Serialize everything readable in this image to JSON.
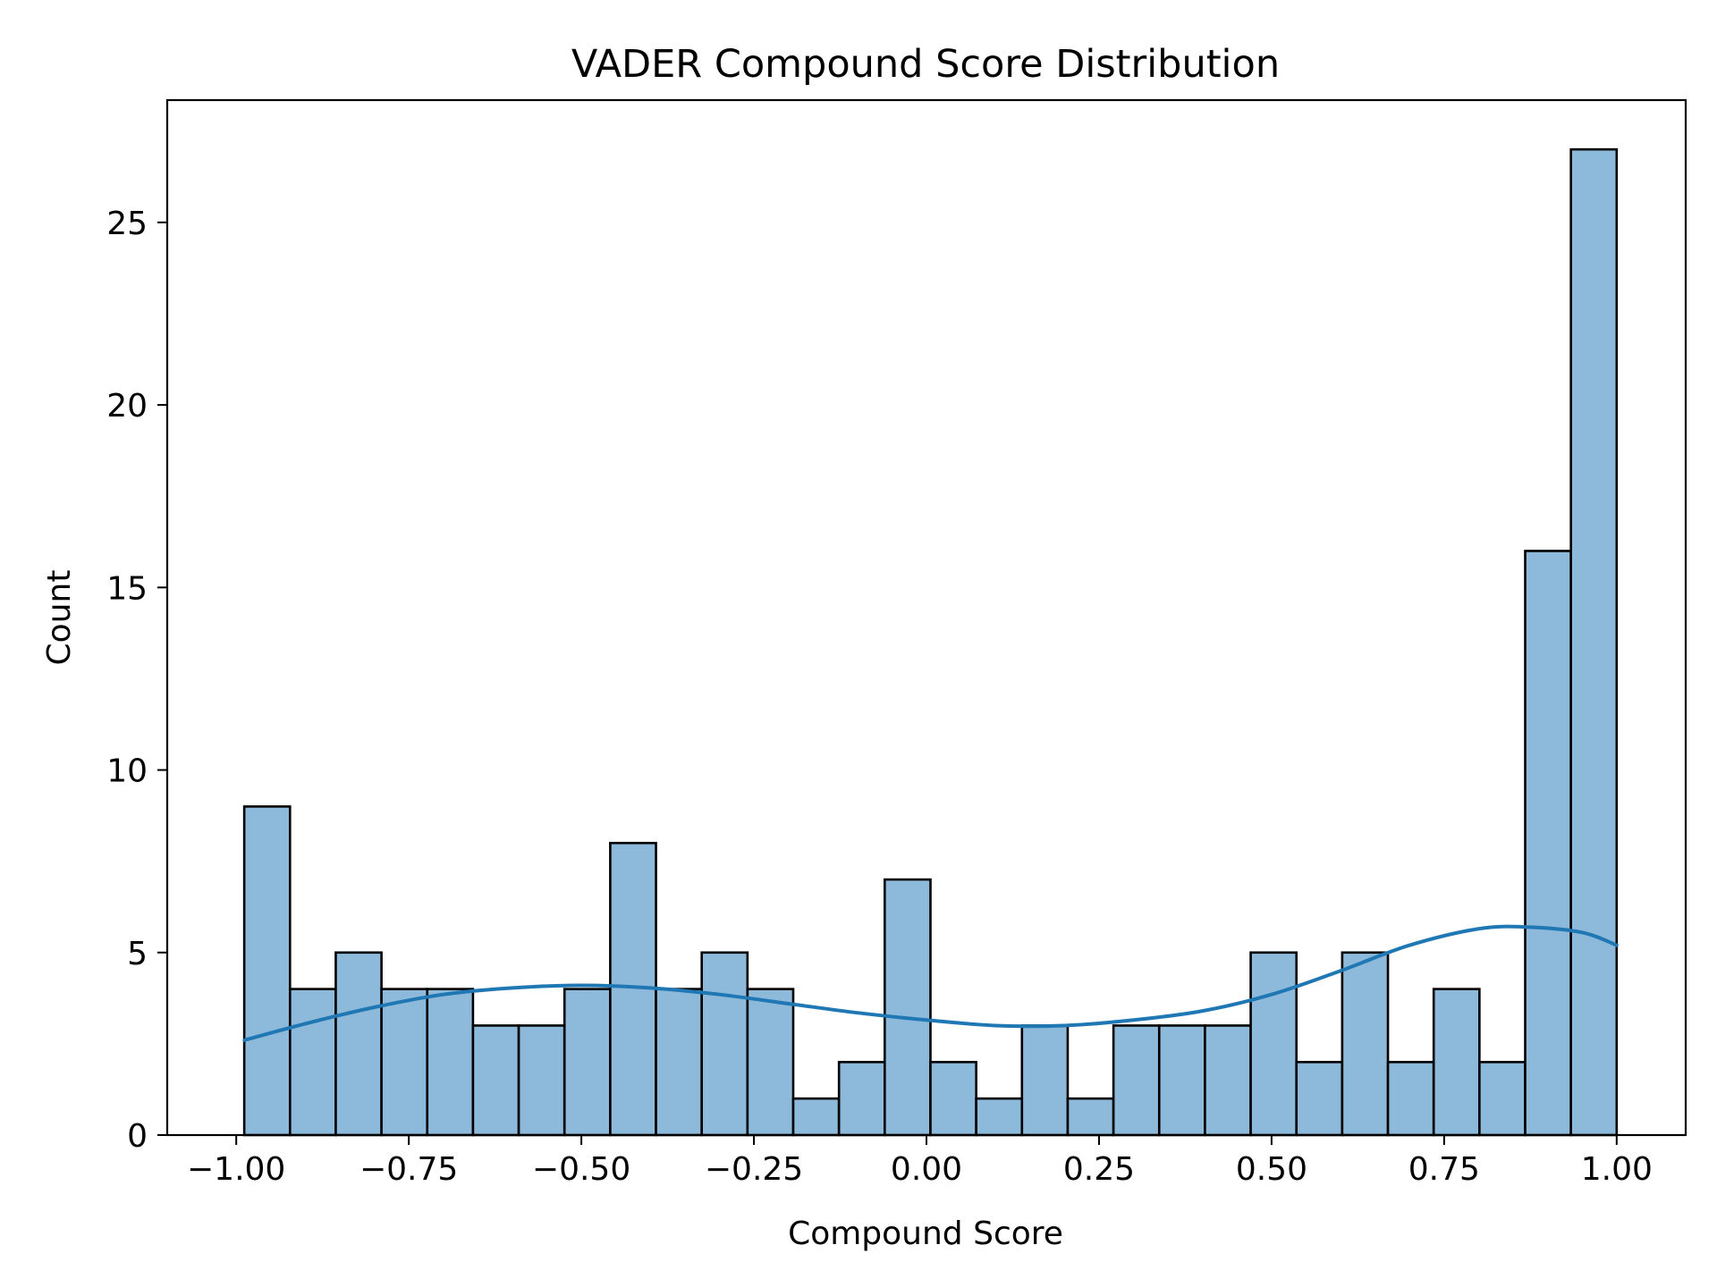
{
  "chart_data": {
    "type": "bar",
    "subtype": "histogram",
    "title": "VADER Compound Score Distribution",
    "xlabel": "Compound Score",
    "ylabel": "Count",
    "xlim": [
      -1.1,
      1.1
    ],
    "ylim": [
      0,
      28.35
    ],
    "xticks": [
      -1.0,
      -0.75,
      -0.5,
      -0.25,
      0.0,
      0.25,
      0.5,
      0.75,
      1.0
    ],
    "xtick_labels": [
      "−1.00",
      "−0.75",
      "−0.50",
      "−0.25",
      "0.00",
      "0.25",
      "0.50",
      "0.75",
      "1.00"
    ],
    "yticks": [
      0,
      5,
      10,
      15,
      20,
      25
    ],
    "ytick_labels": [
      "0",
      "5",
      "10",
      "15",
      "20",
      "25"
    ],
    "bin_range": [
      -0.9884,
      1.0
    ],
    "bin_count": 30,
    "counts": [
      9,
      4,
      5,
      4,
      4,
      3,
      3,
      4,
      8,
      4,
      5,
      4,
      1,
      2,
      7,
      2,
      1,
      3,
      1,
      3,
      3,
      3,
      5,
      2,
      5,
      2,
      4,
      2,
      16,
      27
    ],
    "bar_color": "#8db9da",
    "edge_color": "#000000",
    "kde": {
      "color": "#1f77b4",
      "x": [
        -0.988,
        -0.9,
        -0.8,
        -0.7,
        -0.6,
        -0.5,
        -0.4,
        -0.3,
        -0.2,
        -0.1,
        0.0,
        0.1,
        0.2,
        0.3,
        0.4,
        0.5,
        0.6,
        0.7,
        0.8,
        0.87,
        0.95,
        1.0
      ],
      "y": [
        2.6,
        3.05,
        3.5,
        3.85,
        4.03,
        4.1,
        4.03,
        3.85,
        3.6,
        3.35,
        3.15,
        3.0,
        3.0,
        3.15,
        3.4,
        3.85,
        4.5,
        5.2,
        5.65,
        5.7,
        5.55,
        5.2
      ]
    },
    "grid": false,
    "legend": "none"
  }
}
